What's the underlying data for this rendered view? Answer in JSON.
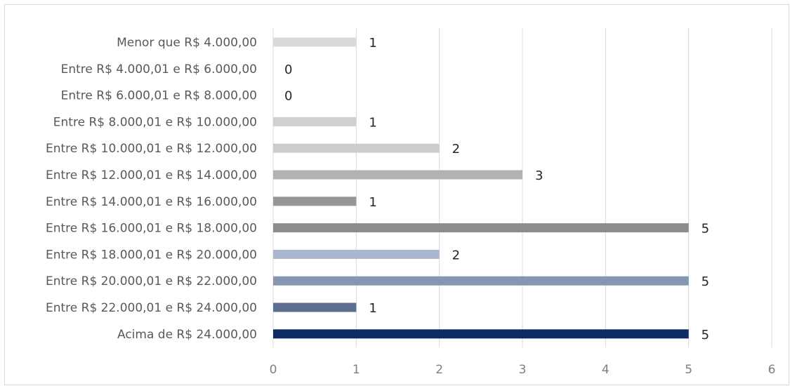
{
  "chart_data": {
    "type": "bar",
    "orientation": "horizontal",
    "categories": [
      "Menor que R$ 4.000,00",
      "Entre R$ 4.000,01 e R$ 6.000,00",
      "Entre R$ 6.000,01 e R$ 8.000,00",
      "Entre R$ 8.000,01 e R$ 10.000,00",
      "Entre R$ 10.000,01 e R$ 12.000,00",
      "Entre R$ 12.000,01 e R$ 14.000,00",
      "Entre R$ 14.000,01 e R$ 16.000,00",
      "Entre R$ 16.000,01 e R$ 18.000,00",
      "Entre R$ 18.000,01 e R$ 20.000,00",
      "Entre R$ 20.000,01 e R$ 22.000,00",
      "Entre R$ 22.000,01 e R$ 24.000,00",
      "Acima de R$ 24.000,00"
    ],
    "values": [
      1,
      0,
      0,
      1,
      2,
      3,
      1,
      5,
      2,
      5,
      1,
      5
    ],
    "data_labels": [
      "1",
      "0",
      "0",
      "1",
      "2",
      "3",
      "1",
      "5",
      "2",
      "5",
      "1",
      "5"
    ],
    "colors": [
      "#d9d9d9",
      "#d9d9d9",
      "#d9d9d9",
      "#d0d0d0",
      "#cccccc",
      "#b2b2b2",
      "#969696",
      "#8c8c8c",
      "#a9b7d0",
      "#8496b0",
      "#5b6e8e",
      "#0d2a63"
    ],
    "xlim": [
      0,
      6
    ],
    "x_ticks": [
      "0",
      "1",
      "2",
      "3",
      "4",
      "5",
      "6"
    ],
    "gridlines": true,
    "legend": "none",
    "title": "",
    "xlabel": "",
    "ylabel": ""
  }
}
